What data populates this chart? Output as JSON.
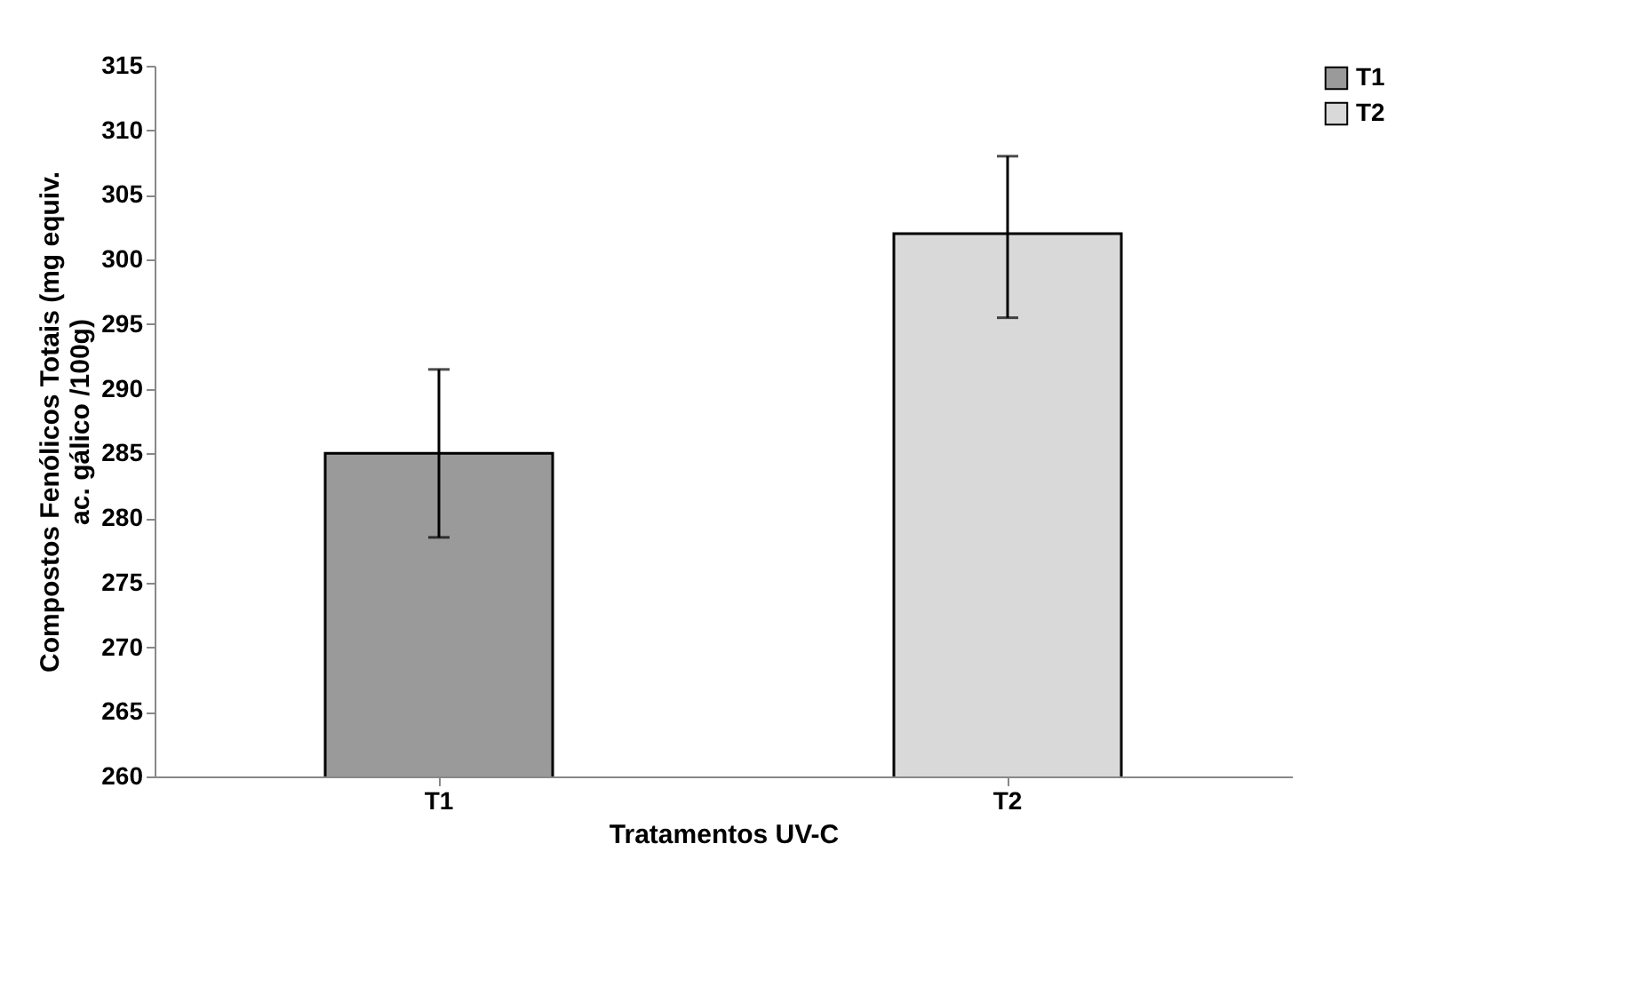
{
  "chart_data": {
    "type": "bar",
    "xlabel": "Tratamentos UV-C",
    "ylabel": "Compostos Fenólicos Totais (mg equiv.\nac. gálico /100g)",
    "categories": [
      "T1",
      "T2"
    ],
    "series": [
      {
        "name": "T1",
        "color": "#9a9a9a",
        "values": [
          285,
          null
        ],
        "errors": [
          [
            278.5,
            291.5
          ],
          null
        ]
      },
      {
        "name": "T2",
        "color": "#d9d9d9",
        "values": [
          null,
          302
        ],
        "errors": [
          null,
          [
            295.5,
            308
          ]
        ]
      }
    ],
    "ylim": [
      260,
      315
    ],
    "yticks": [
      260,
      265,
      270,
      275,
      280,
      285,
      290,
      295,
      300,
      305,
      310,
      315
    ],
    "grid": false,
    "legend": "right"
  }
}
